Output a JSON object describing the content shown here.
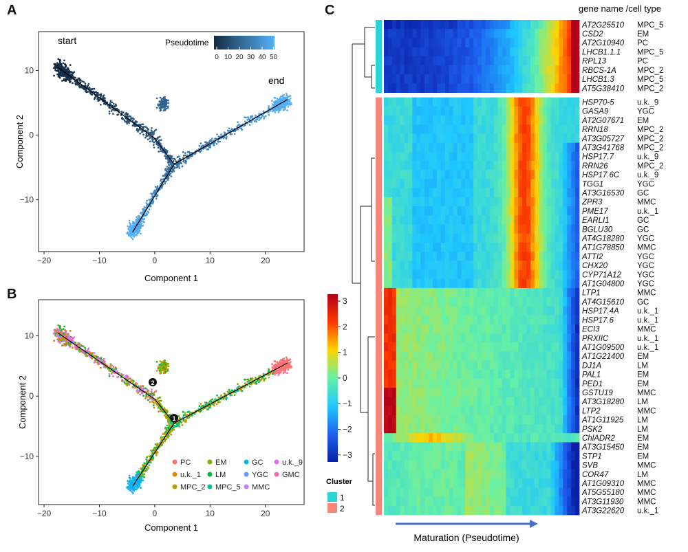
{
  "panels": {
    "a": {
      "letter": "A",
      "xlabel": "Component 1",
      "ylabel": "Component 2",
      "legend_title": "Pseudotime",
      "legend_ticks": [
        "0",
        "10",
        "20",
        "30",
        "40",
        "50"
      ],
      "annotations": {
        "start": "start",
        "end": "end"
      }
    },
    "b": {
      "letter": "B",
      "xlabel": "Component 1",
      "ylabel": "Component 2",
      "branch_points": [
        "1",
        "2"
      ],
      "legend": [
        {
          "label": "PC",
          "color": "#f8766d"
        },
        {
          "label": "EM",
          "color": "#7cae00"
        },
        {
          "label": "GC",
          "color": "#00b8e7"
        },
        {
          "label": "u.k._9",
          "color": "#e76bf3"
        },
        {
          "label": "u.k._1",
          "color": "#de8c00"
        },
        {
          "label": "LM",
          "color": "#00ba38"
        },
        {
          "label": "YGC",
          "color": "#619cff"
        },
        {
          "label": "GMC",
          "color": "#ff64b0"
        },
        {
          "label": "MPC_2",
          "color": "#b79f00"
        },
        {
          "label": "MPC_5",
          "color": "#00c19a"
        },
        {
          "label": "MMC",
          "color": "#c77cff"
        }
      ]
    },
    "c": {
      "letter": "C",
      "header": "gene name /cell type",
      "colorbar_ticks": [
        "3",
        "2",
        "1",
        "0",
        "−1",
        "−2",
        "−3"
      ],
      "cluster_title": "Cluster",
      "clusters": [
        {
          "label": "1",
          "color": "#2cd3d7"
        },
        {
          "label": "2",
          "color": "#f7877b"
        }
      ],
      "xlabel": "Maturation (Pseudotime)"
    }
  },
  "axes": {
    "x_ticks": [
      "−20",
      "−10",
      "0",
      "10",
      "20"
    ],
    "a_y_ticks": [
      "10",
      "0",
      "−10"
    ],
    "b_y_ticks": [
      "10",
      "0",
      "−10"
    ]
  },
  "chart_data": [
    {
      "type": "scatter",
      "title": "",
      "xlabel": "Component 1",
      "ylabel": "Component 2",
      "xlim": [
        -21,
        27
      ],
      "ylim": [
        -18,
        16
      ],
      "trajectory": {
        "segments": [
          {
            "from": [
              -17.5,
              10.5
            ],
            "to": [
              0,
              -0.5
            ]
          },
          {
            "from": [
              0,
              -0.5
            ],
            "to": [
              3.5,
              -4.5
            ]
          },
          {
            "from": [
              3.5,
              -4.5
            ],
            "to": [
              24,
              5.5
            ]
          },
          {
            "from": [
              3.5,
              -4.5
            ],
            "to": [
              -4,
              -15
            ]
          }
        ]
      },
      "colorscale": {
        "name": "Pseudotime",
        "min": 0,
        "max": 52,
        "low": "#132b43",
        "high": "#56b1f7"
      }
    },
    {
      "type": "scatter",
      "title": "",
      "xlabel": "Component 1",
      "ylabel": "Component 2",
      "xlim": [
        -21,
        27
      ],
      "ylim": [
        -18,
        16
      ],
      "color_by": "cell type"
    },
    {
      "type": "heatmap",
      "title": "",
      "xlabel": "Maturation (Pseudotime)",
      "color_range": [
        -3,
        3
      ],
      "rows": [
        {
          "gene": "AT2G25510",
          "cell_type": "MPC_5",
          "cluster": 1
        },
        {
          "gene": "CSD2",
          "cell_type": "EM",
          "cluster": 1
        },
        {
          "gene": "AT2G10940",
          "cell_type": "PC",
          "cluster": 1
        },
        {
          "gene": "LHCB1.1.1",
          "cell_type": "MPC_5",
          "cluster": 1
        },
        {
          "gene": "RPL13",
          "cell_type": "PC",
          "cluster": 1
        },
        {
          "gene": "RBCS-1A",
          "cell_type": "MPC_2",
          "cluster": 1
        },
        {
          "gene": "LHCB1.3",
          "cell_type": "MPC_5",
          "cluster": 1
        },
        {
          "gene": "AT5G38410",
          "cell_type": "MPC_2",
          "cluster": 1
        },
        {
          "gene": "HSP70-5",
          "cell_type": "u.k._9",
          "cluster": 2
        },
        {
          "gene": "GASA9",
          "cell_type": "YGC",
          "cluster": 2
        },
        {
          "gene": "AT2G07671",
          "cell_type": "EM",
          "cluster": 2
        },
        {
          "gene": "RRN18",
          "cell_type": "MPC_2",
          "cluster": 2
        },
        {
          "gene": "AT3G05727",
          "cell_type": "MPC_2",
          "cluster": 2
        },
        {
          "gene": "AT3G41768",
          "cell_type": "MPC_2",
          "cluster": 2
        },
        {
          "gene": "HSP17.7",
          "cell_type": "u.k._9",
          "cluster": 2
        },
        {
          "gene": "RRN26",
          "cell_type": "MPC_2",
          "cluster": 2
        },
        {
          "gene": "HSP17.6C",
          "cell_type": "u.k._9",
          "cluster": 2
        },
        {
          "gene": "TGG1",
          "cell_type": "YGC",
          "cluster": 2
        },
        {
          "gene": "AT3G16530",
          "cell_type": "GC",
          "cluster": 2
        },
        {
          "gene": "ZPR3",
          "cell_type": "MMC",
          "cluster": 2
        },
        {
          "gene": "PME17",
          "cell_type": "u.k._1",
          "cluster": 2
        },
        {
          "gene": "EARLI1",
          "cell_type": "GC",
          "cluster": 2
        },
        {
          "gene": "BGLU30",
          "cell_type": "GC",
          "cluster": 2
        },
        {
          "gene": "AT4G18280",
          "cell_type": "YGC",
          "cluster": 2
        },
        {
          "gene": "AT1G78850",
          "cell_type": "MMC",
          "cluster": 2
        },
        {
          "gene": "ATTI2",
          "cell_type": "YGC",
          "cluster": 2
        },
        {
          "gene": "CHX20",
          "cell_type": "YGC",
          "cluster": 2
        },
        {
          "gene": "CYP71A12",
          "cell_type": "YGC",
          "cluster": 2
        },
        {
          "gene": "AT1G04800",
          "cell_type": "YGC",
          "cluster": 2
        },
        {
          "gene": "LTP1",
          "cell_type": "MMC",
          "cluster": 2
        },
        {
          "gene": "AT4G15610",
          "cell_type": "GC",
          "cluster": 2
        },
        {
          "gene": "HSP17.4A",
          "cell_type": "u.k._1",
          "cluster": 2
        },
        {
          "gene": "HSP17.6",
          "cell_type": "u.k._1",
          "cluster": 2
        },
        {
          "gene": "ECI3",
          "cell_type": "MMC",
          "cluster": 2
        },
        {
          "gene": "PRXIIC",
          "cell_type": "u.k._1",
          "cluster": 2
        },
        {
          "gene": "AT1G09500",
          "cell_type": "u.k._1",
          "cluster": 2
        },
        {
          "gene": "AT1G21400",
          "cell_type": "EM",
          "cluster": 2
        },
        {
          "gene": "DJ1A",
          "cell_type": "LM",
          "cluster": 2
        },
        {
          "gene": "PAL1",
          "cell_type": "EM",
          "cluster": 2
        },
        {
          "gene": "PED1",
          "cell_type": "EM",
          "cluster": 2
        },
        {
          "gene": "GSTU19",
          "cell_type": "MMC",
          "cluster": 2
        },
        {
          "gene": "AT3G18280",
          "cell_type": "LM",
          "cluster": 2
        },
        {
          "gene": "LTP2",
          "cell_type": "MMC",
          "cluster": 2
        },
        {
          "gene": "AT1G11925",
          "cell_type": "LM",
          "cluster": 2
        },
        {
          "gene": "PSK2",
          "cell_type": "LM",
          "cluster": 2
        },
        {
          "gene": "ChlADR2",
          "cell_type": "EM",
          "cluster": 2
        },
        {
          "gene": "AT3G15450",
          "cell_type": "EM",
          "cluster": 2
        },
        {
          "gene": "STP1",
          "cell_type": "EM",
          "cluster": 2
        },
        {
          "gene": "SVB",
          "cell_type": "MMC",
          "cluster": 2
        },
        {
          "gene": "COR47",
          "cell_type": "LM",
          "cluster": 2
        },
        {
          "gene": "AT1G09310",
          "cell_type": "MMC",
          "cluster": 2
        },
        {
          "gene": "AT5G55180",
          "cell_type": "MMC",
          "cluster": 2
        },
        {
          "gene": "AT3G11930",
          "cell_type": "MMC",
          "cluster": 2
        },
        {
          "gene": "AT3G22620",
          "cell_type": "u.k._1",
          "cluster": 2
        }
      ]
    }
  ]
}
